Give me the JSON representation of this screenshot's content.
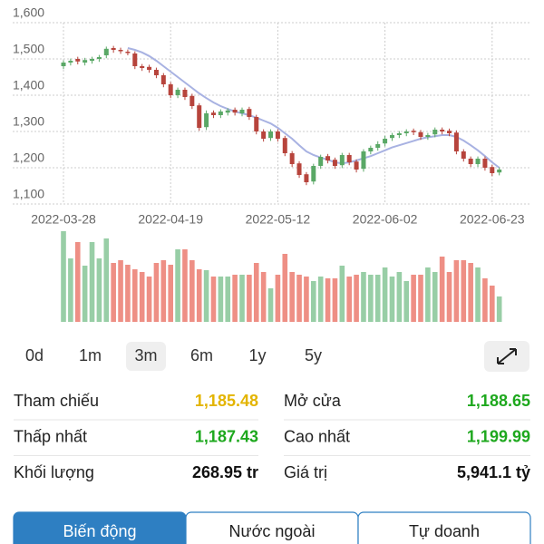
{
  "chart_data": {
    "type": "candlestick",
    "categories": [
      "2022-03-28",
      null,
      null,
      null,
      null,
      null,
      null,
      null,
      null,
      null,
      null,
      null,
      null,
      null,
      null,
      "2022-04-19",
      null,
      null,
      null,
      null,
      null,
      null,
      null,
      null,
      null,
      null,
      null,
      null,
      null,
      null,
      "2022-05-12",
      null,
      null,
      null,
      null,
      null,
      null,
      null,
      null,
      null,
      null,
      null,
      null,
      null,
      null,
      "2022-06-02",
      null,
      null,
      null,
      null,
      null,
      null,
      null,
      null,
      null,
      null,
      null,
      null,
      null,
      null,
      "2022-06-23",
      null
    ],
    "open": [
      1480,
      1490,
      1500,
      1490,
      1495,
      1500,
      1510,
      1530,
      1525,
      1520,
      1515,
      1480,
      1478,
      1470,
      1455,
      1430,
      1400,
      1415,
      1398,
      1372,
      1312,
      1352,
      1345,
      1352,
      1360,
      1350,
      1362,
      1340,
      1300,
      1282,
      1300,
      1282,
      1240,
      1212,
      1182,
      1162,
      1205,
      1232,
      1222,
      1207,
      1235,
      1217,
      1197,
      1245,
      1255,
      1267,
      1282,
      1290,
      1295,
      1302,
      1298,
      1285,
      1292,
      1305,
      1302,
      1297,
      1245,
      1225,
      1210,
      1225,
      1202,
      1187
    ],
    "high": [
      1496,
      1501,
      1506,
      1503,
      1506,
      1511,
      1534,
      1536,
      1531,
      1526,
      1521,
      1486,
      1484,
      1476,
      1461,
      1436,
      1421,
      1421,
      1404,
      1378,
      1358,
      1358,
      1361,
      1364,
      1366,
      1366,
      1368,
      1346,
      1306,
      1306,
      1306,
      1288,
      1246,
      1218,
      1188,
      1211,
      1236,
      1238,
      1228,
      1241,
      1241,
      1223,
      1251,
      1261,
      1273,
      1288,
      1296,
      1301,
      1306,
      1308,
      1304,
      1296,
      1311,
      1311,
      1308,
      1303,
      1251,
      1231,
      1231,
      1231,
      1208,
      1201
    ],
    "low": [
      1472,
      1482,
      1485,
      1482,
      1487,
      1492,
      1502,
      1517,
      1514,
      1510,
      1472,
      1467,
      1462,
      1447,
      1422,
      1392,
      1392,
      1387,
      1362,
      1302,
      1304,
      1337,
      1337,
      1344,
      1344,
      1342,
      1332,
      1292,
      1272,
      1274,
      1272,
      1232,
      1202,
      1172,
      1152,
      1154,
      1197,
      1212,
      1197,
      1199,
      1207,
      1187,
      1189,
      1237,
      1247,
      1259,
      1274,
      1282,
      1287,
      1290,
      1277,
      1277,
      1284,
      1292,
      1287,
      1237,
      1217,
      1202,
      1202,
      1192,
      1177,
      1179
    ],
    "close": [
      1490,
      1495,
      1493,
      1497,
      1500,
      1505,
      1528,
      1525,
      1522,
      1518,
      1480,
      1475,
      1470,
      1455,
      1430,
      1400,
      1415,
      1395,
      1370,
      1310,
      1350,
      1345,
      1355,
      1358,
      1352,
      1360,
      1340,
      1300,
      1280,
      1300,
      1280,
      1240,
      1210,
      1180,
      1160,
      1205,
      1230,
      1220,
      1205,
      1235,
      1215,
      1195,
      1245,
      1255,
      1265,
      1280,
      1290,
      1295,
      1300,
      1298,
      1285,
      1290,
      1305,
      1300,
      1295,
      1245,
      1225,
      1210,
      1225,
      1200,
      1185,
      1195
    ],
    "ma": [
      null,
      null,
      null,
      null,
      null,
      null,
      null,
      null,
      null,
      1530,
      1525,
      1518,
      1508,
      1495,
      1480,
      1465,
      1450,
      1435,
      1420,
      1405,
      1392,
      1380,
      1370,
      1362,
      1355,
      1350,
      1345,
      1338,
      1330,
      1322,
      1310,
      1295,
      1280,
      1262,
      1245,
      1235,
      1228,
      1222,
      1215,
      1212,
      1215,
      1220,
      1226,
      1232,
      1240,
      1248,
      1256,
      1262,
      1268,
      1274,
      1280,
      1284,
      1287,
      1290,
      1290,
      1285,
      1275,
      1262,
      1248,
      1232,
      1215,
      1200
    ],
    "volume": [
      100,
      70,
      88,
      62,
      88,
      70,
      92,
      65,
      68,
      63,
      58,
      55,
      50,
      65,
      68,
      63,
      80,
      80,
      68,
      58,
      57,
      50,
      50,
      50,
      52,
      52,
      52,
      65,
      55,
      37,
      52,
      75,
      55,
      52,
      50,
      45,
      50,
      48,
      48,
      62,
      50,
      52,
      55,
      52,
      52,
      60,
      50,
      55,
      45,
      52,
      52,
      60,
      55,
      72,
      55,
      68,
      68,
      65,
      60,
      48,
      40,
      28
    ],
    "vlim": [
      0,
      100
    ],
    "ylim": [
      1100,
      1600
    ],
    "yticks": [
      {
        "value": 1600,
        "label": "1,600"
      },
      {
        "value": 1500,
        "label": "1,500"
      },
      {
        "value": 1400,
        "label": "1,400"
      },
      {
        "value": 1300,
        "label": "1,300"
      },
      {
        "value": 1200,
        "label": "1,200"
      },
      {
        "value": 1100,
        "label": "1,100"
      }
    ],
    "grid": true,
    "up_color": "#5aa866",
    "down_color": "#b7443c",
    "volume_up_color": "#98cea6",
    "volume_down_color": "#ee8f85",
    "ma_color": "#a8b2e2"
  },
  "periods": [
    "0d",
    "1m",
    "3m",
    "6m",
    "1y",
    "5y"
  ],
  "selected_period": 2,
  "stats": [
    [
      {
        "label": "Tham chiếu",
        "value": "1,185.48",
        "color": "#e3b400"
      },
      {
        "label": "Mở cửa",
        "value": "1,188.65",
        "color": "#1ea81e"
      }
    ],
    [
      {
        "label": "Thấp nhất",
        "value": "1,187.43",
        "color": "#1ea81e"
      },
      {
        "label": "Cao nhất",
        "value": "1,199.99",
        "color": "#1ea81e"
      }
    ],
    [
      {
        "label": "Khối lượng",
        "value": "268.95 tr",
        "color": "#111111"
      },
      {
        "label": "Giá trị",
        "value": "5,941.1 tỷ",
        "color": "#111111"
      }
    ]
  ],
  "tabs": [
    "Biến động",
    "Nước ngoài",
    "Tự doanh"
  ],
  "selected_tab": 0
}
